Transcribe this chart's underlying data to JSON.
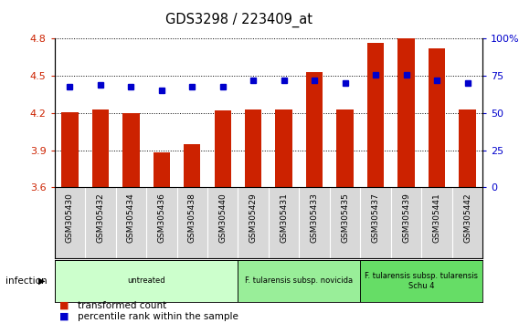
{
  "title": "GDS3298 / 223409_at",
  "samples": [
    "GSM305430",
    "GSM305432",
    "GSM305434",
    "GSM305436",
    "GSM305438",
    "GSM305440",
    "GSM305429",
    "GSM305431",
    "GSM305433",
    "GSM305435",
    "GSM305437",
    "GSM305439",
    "GSM305441",
    "GSM305442"
  ],
  "transformed_count": [
    4.21,
    4.23,
    4.2,
    3.88,
    3.95,
    4.22,
    4.23,
    4.23,
    4.53,
    4.23,
    4.77,
    4.8,
    4.72,
    4.23
  ],
  "percentile_rank": [
    68,
    69,
    68,
    65,
    68,
    68,
    72,
    72,
    72,
    70,
    76,
    76,
    72,
    70
  ],
  "ylim_left": [
    3.6,
    4.8
  ],
  "ylim_right": [
    0,
    100
  ],
  "yticks_left": [
    3.6,
    3.9,
    4.2,
    4.5,
    4.8
  ],
  "yticks_right": [
    0,
    25,
    50,
    75,
    100
  ],
  "bar_color": "#cc2200",
  "dot_color": "#0000cc",
  "groups": [
    {
      "label": "untreated",
      "start": 0,
      "end": 6,
      "color": "#ccffcc"
    },
    {
      "label": "F. tularensis subsp. novicida",
      "start": 6,
      "end": 10,
      "color": "#99ee99"
    },
    {
      "label": "F. tularensis subsp. tularensis\nSchu 4",
      "start": 10,
      "end": 14,
      "color": "#66dd66"
    }
  ],
  "infection_label": "infection",
  "legend_items": [
    {
      "label": "transformed count",
      "color": "#cc2200"
    },
    {
      "label": "percentile rank within the sample",
      "color": "#0000cc"
    }
  ],
  "tick_bg_color": "#d8d8d8"
}
